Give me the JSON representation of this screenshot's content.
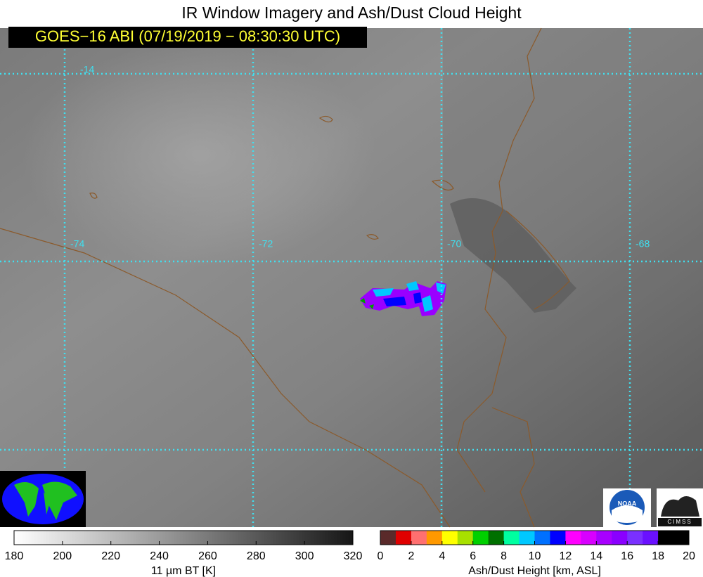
{
  "title": "IR Window Imagery and Ash/Dust Cloud Height",
  "timestamp": "GOES−16 ABI (07/19/2019 − 08:30:30 UTC)",
  "grid_labels": {
    "latitude": [
      "-14"
    ],
    "longitude": [
      "-74",
      "-72",
      "-70",
      "-68"
    ]
  },
  "colorbars": [
    {
      "label": "11 µm BT [K]",
      "range": [
        180,
        320
      ],
      "ticks": [
        180,
        200,
        220,
        240,
        260,
        280,
        300,
        320
      ],
      "gradient": [
        "#ffffff",
        "#161616"
      ]
    },
    {
      "label": "Ash/Dust Height [km, ASL]",
      "range": [
        0,
        20
      ],
      "ticks": [
        0,
        2,
        4,
        6,
        8,
        10,
        12,
        14,
        16,
        18,
        20
      ],
      "colors": [
        "#5a2a2a",
        "#e00000",
        "#ff7070",
        "#ff9900",
        "#ffff00",
        "#a8e000",
        "#00d000",
        "#007000",
        "#00ffa0",
        "#00c8ff",
        "#0070ff",
        "#0000ff",
        "#ff00ff",
        "#d800ff",
        "#a800ff",
        "#8a00ff",
        "#7a30ff",
        "#6a10ff",
        "#000000",
        "#000000"
      ]
    }
  ],
  "logos": [
    "NOAA",
    "CIMSS"
  ]
}
